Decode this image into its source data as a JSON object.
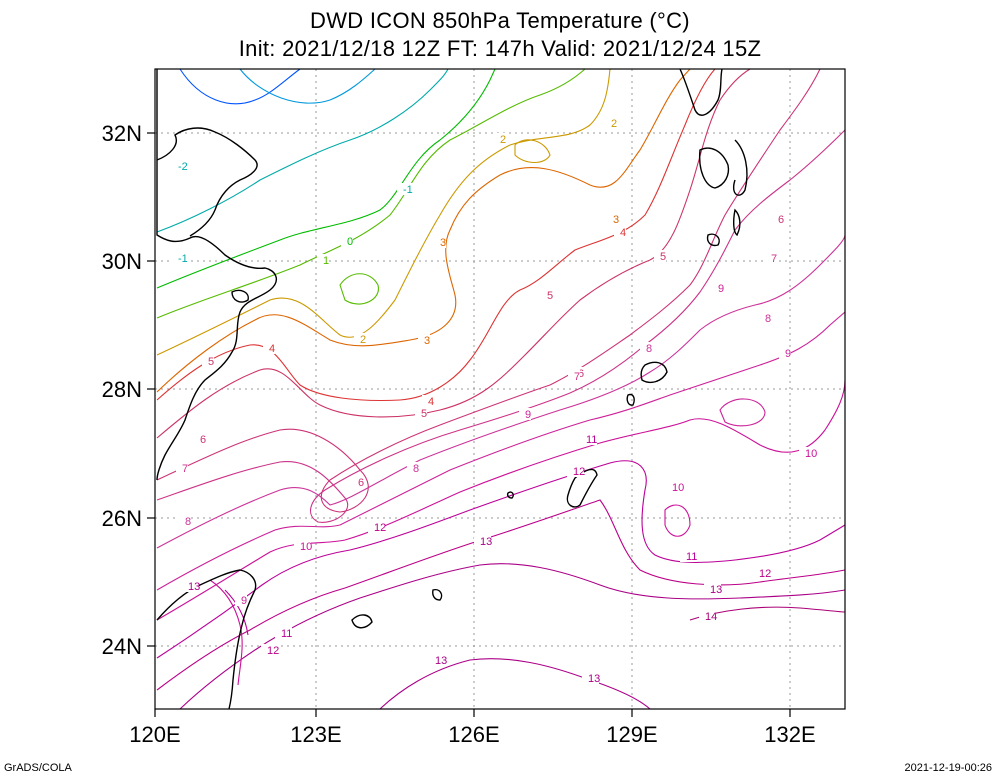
{
  "title": {
    "line1": "DWD ICON 850hPa Temperature (°C)",
    "line2": "Init: 2021/12/18 12Z  FT: 147h  Valid: 2021/12/24 15Z"
  },
  "axes": {
    "lat_labels": [
      "32N",
      "30N",
      "28N",
      "26N",
      "24N"
    ],
    "lon_labels": [
      "120E",
      "123E",
      "126E",
      "129E",
      "132E"
    ]
  },
  "footer": {
    "left": "GrADS/COLA",
    "right": "2021-12-19-00:26"
  },
  "colors": {
    "contour_low": "#00aaff",
    "contour_zero": "#00cc00",
    "contour_mid": "#cc6600",
    "contour_high": "#cc0099",
    "coast": "#000000",
    "grid": "#999999"
  },
  "contour_labels": [
    {
      "text": "-2",
      "color": "#00aaaa"
    },
    {
      "text": "-1",
      "color": "#00aaaa"
    },
    {
      "text": "-1",
      "color": "#00aaaa"
    },
    {
      "text": "0",
      "color": "#00bb00"
    },
    {
      "text": "1",
      "color": "#55bb00"
    },
    {
      "text": "2",
      "color": "#cc9900"
    },
    {
      "text": "2",
      "color": "#cc9900"
    },
    {
      "text": "2",
      "color": "#cc9900"
    },
    {
      "text": "3",
      "color": "#dd6600"
    },
    {
      "text": "3",
      "color": "#dd6600"
    },
    {
      "text": "3",
      "color": "#dd6600"
    },
    {
      "text": "4",
      "color": "#dd3333"
    },
    {
      "text": "4",
      "color": "#dd3333"
    },
    {
      "text": "4",
      "color": "#dd3333"
    },
    {
      "text": "5",
      "color": "#cc3366"
    },
    {
      "text": "5",
      "color": "#cc3366"
    },
    {
      "text": "5",
      "color": "#cc3366"
    },
    {
      "text": "5",
      "color": "#cc3366"
    },
    {
      "text": "6",
      "color": "#cc3377"
    },
    {
      "text": "6",
      "color": "#cc3377"
    },
    {
      "text": "6",
      "color": "#cc3377"
    },
    {
      "text": "6",
      "color": "#cc3377"
    },
    {
      "text": "7",
      "color": "#cc3388"
    },
    {
      "text": "7",
      "color": "#cc3388"
    },
    {
      "text": "7",
      "color": "#cc3388"
    },
    {
      "text": "8",
      "color": "#cc3399"
    },
    {
      "text": "8",
      "color": "#cc3399"
    },
    {
      "text": "8",
      "color": "#cc3399"
    },
    {
      "text": "8",
      "color": "#cc3399"
    },
    {
      "text": "9",
      "color": "#cc2299"
    },
    {
      "text": "9",
      "color": "#cc2299"
    },
    {
      "text": "9",
      "color": "#cc2299"
    },
    {
      "text": "9",
      "color": "#cc2299"
    },
    {
      "text": "10",
      "color": "#cc1199"
    },
    {
      "text": "10",
      "color": "#cc1199"
    },
    {
      "text": "10",
      "color": "#cc1199"
    },
    {
      "text": "11",
      "color": "#bb0099"
    },
    {
      "text": "11",
      "color": "#bb0099"
    },
    {
      "text": "11",
      "color": "#bb0099"
    },
    {
      "text": "12",
      "color": "#bb0088"
    },
    {
      "text": "12",
      "color": "#bb0088"
    },
    {
      "text": "12",
      "color": "#bb0088"
    },
    {
      "text": "12",
      "color": "#bb0088"
    },
    {
      "text": "13",
      "color": "#aa0088"
    },
    {
      "text": "13",
      "color": "#aa0088"
    },
    {
      "text": "13",
      "color": "#aa0088"
    },
    {
      "text": "13",
      "color": "#aa0088"
    },
    {
      "text": "13",
      "color": "#aa0088"
    },
    {
      "text": "14",
      "color": "#aa0077"
    }
  ]
}
